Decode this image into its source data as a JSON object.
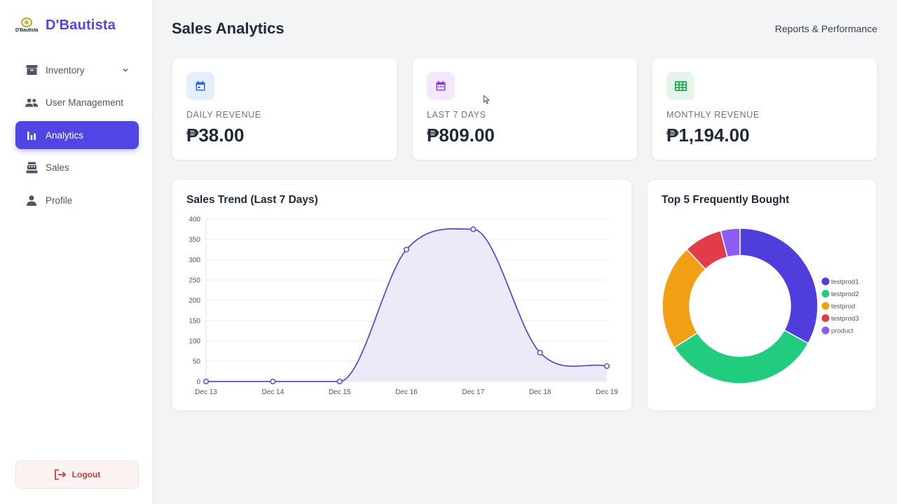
{
  "brand": {
    "name": "D'Bautista",
    "logo_text": "D'Bautista"
  },
  "sidebar": {
    "items": [
      {
        "key": "inventory",
        "label": "Inventory",
        "icon": "archive-box-icon",
        "has_chevron": true,
        "active": false
      },
      {
        "key": "user-management",
        "label": "User Management",
        "icon": "users-icon",
        "active": false
      },
      {
        "key": "analytics",
        "label": "Analytics",
        "icon": "bar-chart-icon",
        "active": true
      },
      {
        "key": "sales",
        "label": "Sales",
        "icon": "cash-register-icon",
        "active": false
      },
      {
        "key": "profile",
        "label": "Profile",
        "icon": "user-icon",
        "active": false
      }
    ],
    "logout_label": "Logout"
  },
  "header": {
    "title": "Sales Analytics",
    "right_text": "Reports & Performance"
  },
  "stats": [
    {
      "label": "DAILY REVENUE",
      "value": "₱38.00",
      "icon": "calendar-icon",
      "color": "#2563eb",
      "bg": "#e5eefc"
    },
    {
      "label": "LAST 7 DAYS",
      "value": "₱809.00",
      "icon": "calendar-week-icon",
      "color": "#9333ea",
      "bg": "#f3e8fd"
    },
    {
      "label": "MONTHLY REVENUE",
      "value": "₱1,194.00",
      "icon": "table-grid-icon",
      "color": "#16a34a",
      "bg": "#e3f6e9"
    }
  ],
  "trend": {
    "title": "Sales Trend (Last 7 Days)"
  },
  "top5": {
    "title": "Top 5 Frequently Bought"
  },
  "chart_data": [
    {
      "type": "line",
      "title": "Sales Trend (Last 7 Days)",
      "categories": [
        "Dec 13",
        "Dec 14",
        "Dec 15",
        "Dec 16",
        "Dec 17",
        "Dec 18",
        "Dec 19"
      ],
      "series": [
        {
          "values": [
            0,
            0,
            0,
            325,
            375,
            71,
            38
          ]
        }
      ],
      "ylim": [
        0,
        400
      ],
      "yticks": [
        0,
        50,
        100,
        150,
        200,
        250,
        300,
        350,
        400
      ],
      "xlabel": "",
      "ylabel": "",
      "grid": true,
      "fill": true,
      "smooth": true,
      "color": "#5b4fc4",
      "fill_color": "#ece9f8"
    },
    {
      "type": "pie",
      "donut": true,
      "title": "Top 5 Frequently Bought",
      "labels": [
        "testprod1",
        "testprod2",
        "testprod",
        "testprod3",
        "product"
      ],
      "values": [
        33,
        33,
        22,
        8,
        4
      ],
      "colors": [
        "#4f3ddc",
        "#22cc7f",
        "#f1a016",
        "#e23b4a",
        "#8b5cf6"
      ],
      "legend": "right"
    }
  ]
}
